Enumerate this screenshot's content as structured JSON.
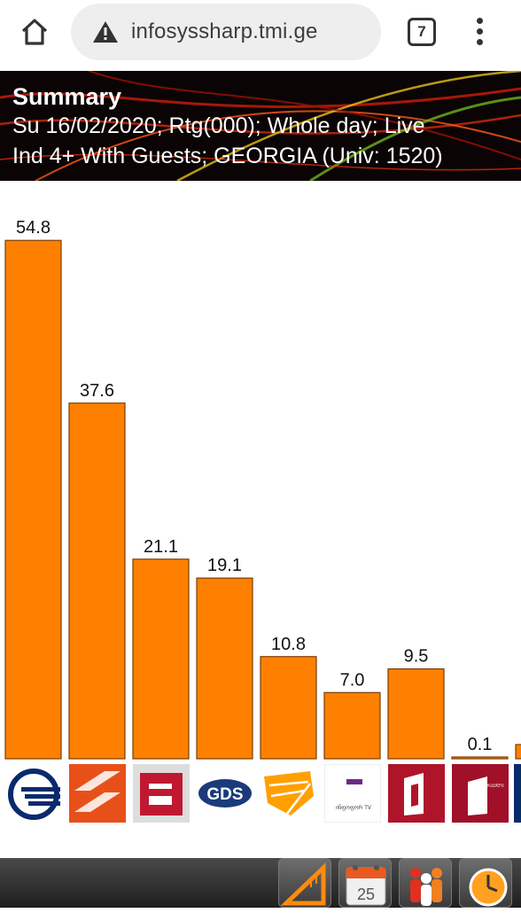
{
  "browser": {
    "url": "infosyssharp.tmi.ge",
    "tab_count": "7",
    "icons": [
      "home-icon",
      "warning-icon",
      "tabs-icon",
      "more-vert-icon"
    ]
  },
  "header": {
    "title": "Summary",
    "line1": "Su 16/02/2020; Rtg(000); Whole day; Live",
    "line2": "Ind 4+ With Guests; GEORGIA (Univ: 1520)"
  },
  "colors": {
    "bar": "#ff8000",
    "bar_border": "#7a3c00"
  },
  "chart_data": {
    "type": "bar",
    "values": [
      54.8,
      37.6,
      21.1,
      19.1,
      10.8,
      7.0,
      9.5,
      0.1,
      1.5
    ],
    "labels": [
      "54.8",
      "37.6",
      "21.1",
      "19.1",
      "10.8",
      "7.0",
      "9.5",
      "0.1",
      ""
    ],
    "ylim": [
      0,
      58.1
    ]
  },
  "logos": [
    {
      "name": "channel-logo-1"
    },
    {
      "name": "channel-logo-2"
    },
    {
      "name": "channel-logo-3"
    },
    {
      "name": "channel-logo-gds",
      "text": "GDS"
    },
    {
      "name": "channel-logo-5"
    },
    {
      "name": "channel-logo-6",
      "text": "ინფოფორ TV"
    },
    {
      "name": "channel-logo-7"
    },
    {
      "name": "channel-logo-8",
      "text": "ᲞᲘᲠᲕᲔᲚᲘ"
    },
    {
      "name": "channel-logo-9"
    }
  ],
  "toolbar": {
    "icons": [
      "ruler-icon",
      "calendar-icon",
      "audience-icon",
      "clock-icon"
    ],
    "calendar_day": "25"
  }
}
